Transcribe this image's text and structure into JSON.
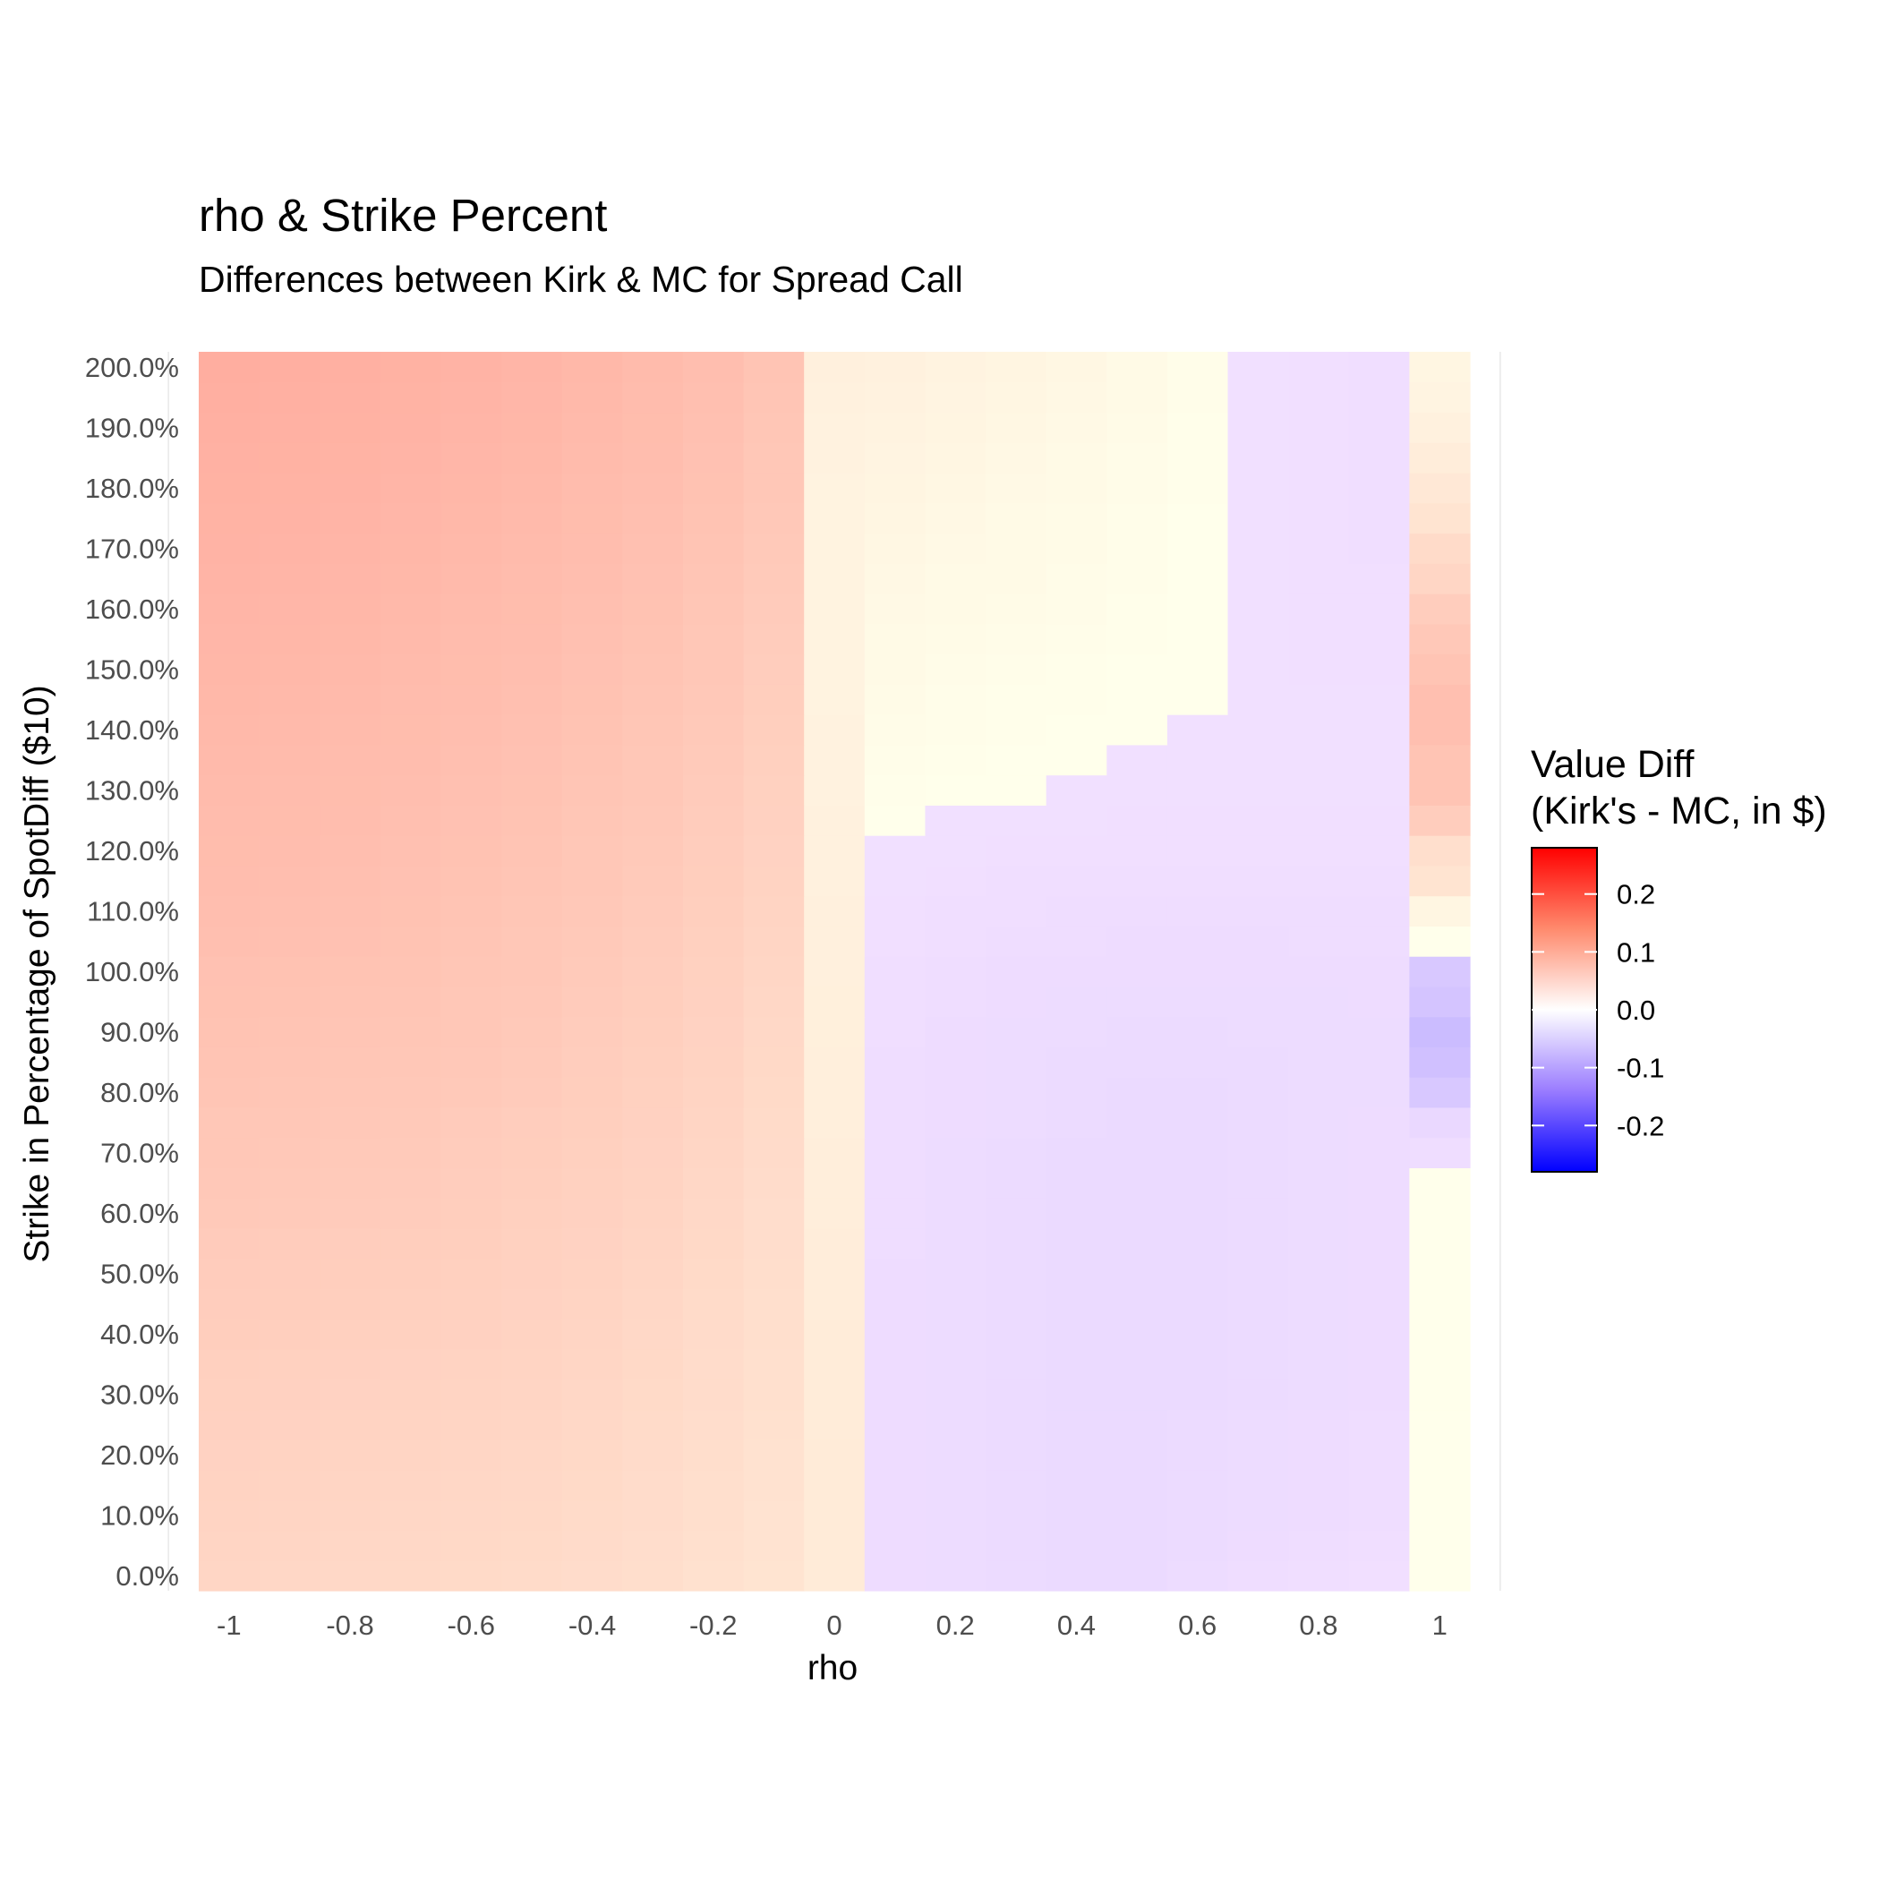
{
  "chart_data": {
    "type": "heatmap",
    "title": "rho & Strike Percent",
    "subtitle": "Differences between Kirk & MC for Spread Call",
    "xlabel": "rho",
    "ylabel": "Strike in Percentage of SpotDiff ($10)",
    "x": [
      -1,
      -0.9,
      -0.8,
      -0.7,
      -0.6,
      -0.5,
      -0.4,
      -0.3,
      -0.2,
      -0.1,
      0,
      0.1,
      0.2,
      0.3,
      0.4,
      0.5,
      0.6,
      0.7,
      0.8,
      0.9,
      1
    ],
    "y": [
      0,
      5,
      10,
      15,
      20,
      25,
      30,
      35,
      40,
      45,
      50,
      55,
      60,
      65,
      70,
      75,
      80,
      85,
      90,
      95,
      100,
      105,
      110,
      115,
      120,
      125,
      130,
      135,
      140,
      145,
      150,
      155,
      160,
      165,
      170,
      175,
      180,
      185,
      190,
      195,
      200
    ],
    "x_ticks": [
      "-1",
      "-0.8",
      "-0.6",
      "-0.4",
      "-0.2",
      "0",
      "0.2",
      "0.4",
      "0.6",
      "0.8",
      "1"
    ],
    "y_ticks": [
      "0.0%",
      "10.0%",
      "20.0%",
      "30.0%",
      "40.0%",
      "50.0%",
      "60.0%",
      "70.0%",
      "80.0%",
      "90.0%",
      "100.0%",
      "110.0%",
      "120.0%",
      "130.0%",
      "140.0%",
      "150.0%",
      "160.0%",
      "170.0%",
      "180.0%",
      "190.0%",
      "200.0%"
    ],
    "xlim": [
      -1.05,
      1.05
    ],
    "ylim": [
      -2.5,
      202.5
    ],
    "rows_note": "values[i][j] = value diff at strike y[i], rho x[j]",
    "values": [
      [
        0.045,
        0.044,
        0.043,
        0.042,
        0.041,
        0.04,
        0.038,
        0.036,
        0.033,
        0.03,
        0.022,
        -0.005,
        -0.006,
        -0.007,
        -0.008,
        -0.008,
        -0.006,
        -0.004,
        -0.003,
        -0.002,
        0.0
      ],
      [
        0.046,
        0.045,
        0.044,
        0.043,
        0.042,
        0.041,
        0.039,
        0.037,
        0.034,
        0.031,
        0.022,
        -0.005,
        -0.006,
        -0.007,
        -0.008,
        -0.008,
        -0.007,
        -0.005,
        -0.004,
        -0.003,
        0.0
      ],
      [
        0.047,
        0.046,
        0.045,
        0.044,
        0.043,
        0.042,
        0.04,
        0.038,
        0.035,
        0.031,
        0.022,
        -0.005,
        -0.006,
        -0.007,
        -0.008,
        -0.008,
        -0.007,
        -0.006,
        -0.005,
        -0.004,
        0.0
      ],
      [
        0.048,
        0.047,
        0.046,
        0.045,
        0.044,
        0.043,
        0.041,
        0.038,
        0.035,
        0.032,
        0.022,
        -0.005,
        -0.006,
        -0.007,
        -0.008,
        -0.008,
        -0.007,
        -0.006,
        -0.005,
        -0.004,
        0.0
      ],
      [
        0.049,
        0.048,
        0.047,
        0.046,
        0.045,
        0.044,
        0.042,
        0.039,
        0.036,
        0.032,
        0.022,
        -0.005,
        -0.006,
        -0.007,
        -0.008,
        -0.008,
        -0.007,
        -0.006,
        -0.005,
        -0.004,
        0.0
      ],
      [
        0.05,
        0.049,
        0.048,
        0.047,
        0.046,
        0.045,
        0.043,
        0.04,
        0.037,
        0.033,
        0.021,
        -0.005,
        -0.006,
        -0.007,
        -0.008,
        -0.008,
        -0.007,
        -0.006,
        -0.005,
        -0.004,
        0.0
      ],
      [
        0.051,
        0.05,
        0.049,
        0.048,
        0.047,
        0.046,
        0.044,
        0.041,
        0.038,
        0.034,
        0.021,
        -0.005,
        -0.006,
        -0.007,
        -0.008,
        -0.008,
        -0.008,
        -0.007,
        -0.006,
        -0.005,
        0.0
      ],
      [
        0.052,
        0.051,
        0.05,
        0.049,
        0.048,
        0.047,
        0.045,
        0.042,
        0.038,
        0.034,
        0.021,
        -0.005,
        -0.006,
        -0.007,
        -0.008,
        -0.008,
        -0.008,
        -0.007,
        -0.006,
        -0.005,
        0.0
      ],
      [
        0.054,
        0.053,
        0.052,
        0.051,
        0.05,
        0.048,
        0.046,
        0.043,
        0.039,
        0.035,
        0.021,
        -0.005,
        -0.006,
        -0.007,
        -0.008,
        -0.008,
        -0.008,
        -0.007,
        -0.006,
        -0.005,
        0.0
      ],
      [
        0.055,
        0.054,
        0.053,
        0.052,
        0.051,
        0.049,
        0.047,
        0.044,
        0.04,
        0.035,
        0.02,
        -0.005,
        -0.006,
        -0.007,
        -0.008,
        -0.008,
        -0.008,
        -0.007,
        -0.006,
        -0.005,
        0.0
      ],
      [
        0.056,
        0.055,
        0.054,
        0.053,
        0.052,
        0.05,
        0.048,
        0.045,
        0.041,
        0.036,
        0.02,
        -0.005,
        -0.006,
        -0.007,
        -0.008,
        -0.008,
        -0.008,
        -0.007,
        -0.006,
        -0.005,
        0.0
      ],
      [
        0.057,
        0.056,
        0.055,
        0.054,
        0.053,
        0.051,
        0.049,
        0.046,
        0.042,
        0.037,
        0.02,
        -0.004,
        -0.006,
        -0.007,
        -0.008,
        -0.008,
        -0.008,
        -0.007,
        -0.006,
        -0.005,
        0.0
      ],
      [
        0.059,
        0.058,
        0.057,
        0.056,
        0.054,
        0.052,
        0.05,
        0.047,
        0.043,
        0.037,
        0.019,
        -0.004,
        -0.006,
        -0.007,
        -0.008,
        -0.008,
        -0.008,
        -0.007,
        -0.006,
        -0.005,
        0.0
      ],
      [
        0.06,
        0.059,
        0.058,
        0.057,
        0.055,
        0.053,
        0.051,
        0.048,
        0.044,
        0.038,
        0.019,
        -0.004,
        -0.006,
        -0.007,
        -0.008,
        -0.008,
        -0.008,
        -0.007,
        -0.006,
        -0.005,
        0.0
      ],
      [
        0.061,
        0.06,
        0.059,
        0.058,
        0.056,
        0.054,
        0.052,
        0.049,
        0.045,
        0.039,
        0.019,
        -0.004,
        -0.006,
        -0.007,
        -0.008,
        -0.008,
        -0.008,
        -0.007,
        -0.006,
        -0.005,
        -0.004
      ],
      [
        0.062,
        0.061,
        0.06,
        0.059,
        0.057,
        0.055,
        0.053,
        0.05,
        0.046,
        0.04,
        0.018,
        -0.004,
        -0.005,
        -0.006,
        -0.007,
        -0.008,
        -0.008,
        -0.007,
        -0.006,
        -0.005,
        -0.01
      ],
      [
        0.064,
        0.063,
        0.062,
        0.06,
        0.059,
        0.057,
        0.054,
        0.051,
        0.047,
        0.041,
        0.018,
        -0.004,
        -0.005,
        -0.006,
        -0.007,
        -0.008,
        -0.008,
        -0.007,
        -0.006,
        -0.006,
        -0.03
      ],
      [
        0.065,
        0.064,
        0.063,
        0.062,
        0.06,
        0.058,
        0.055,
        0.052,
        0.048,
        0.042,
        0.018,
        -0.004,
        -0.005,
        -0.006,
        -0.007,
        -0.007,
        -0.007,
        -0.007,
        -0.006,
        -0.006,
        -0.04
      ],
      [
        0.066,
        0.065,
        0.064,
        0.063,
        0.061,
        0.059,
        0.056,
        0.053,
        0.049,
        0.043,
        0.017,
        -0.003,
        -0.005,
        -0.006,
        -0.006,
        -0.007,
        -0.007,
        -0.006,
        -0.006,
        -0.006,
        -0.045
      ],
      [
        0.067,
        0.066,
        0.065,
        0.064,
        0.062,
        0.06,
        0.057,
        0.054,
        0.05,
        0.044,
        0.017,
        -0.003,
        -0.004,
        -0.005,
        -0.006,
        -0.006,
        -0.006,
        -0.006,
        -0.006,
        -0.005,
        -0.035
      ],
      [
        0.068,
        0.067,
        0.066,
        0.065,
        0.063,
        0.061,
        0.058,
        0.055,
        0.051,
        0.045,
        0.016,
        -0.003,
        -0.004,
        -0.005,
        -0.005,
        -0.005,
        -0.005,
        -0.005,
        -0.005,
        -0.005,
        -0.03
      ],
      [
        0.07,
        0.069,
        0.068,
        0.066,
        0.064,
        0.062,
        0.059,
        0.056,
        0.052,
        0.046,
        0.016,
        -0.002,
        -0.003,
        -0.004,
        -0.004,
        -0.005,
        -0.005,
        -0.005,
        -0.004,
        -0.004,
        0.0
      ],
      [
        0.071,
        0.07,
        0.069,
        0.067,
        0.065,
        0.063,
        0.06,
        0.057,
        0.053,
        0.047,
        0.016,
        -0.002,
        -0.003,
        -0.003,
        -0.004,
        -0.004,
        -0.004,
        -0.004,
        -0.004,
        -0.004,
        0.01
      ],
      [
        0.072,
        0.071,
        0.07,
        0.068,
        0.066,
        0.064,
        0.061,
        0.058,
        0.054,
        0.048,
        0.015,
        -0.001,
        -0.002,
        -0.003,
        -0.003,
        -0.003,
        -0.003,
        -0.003,
        -0.003,
        -0.003,
        0.03
      ],
      [
        0.073,
        0.072,
        0.071,
        0.069,
        0.067,
        0.065,
        0.062,
        0.059,
        0.055,
        0.049,
        0.015,
        -0.001,
        -0.001,
        -0.002,
        -0.002,
        -0.002,
        -0.002,
        -0.002,
        -0.002,
        -0.002,
        0.035
      ],
      [
        0.074,
        0.073,
        0.072,
        0.07,
        0.068,
        0.066,
        0.063,
        0.06,
        0.056,
        0.05,
        0.015,
        0.0,
        -0.001,
        -0.001,
        -0.001,
        -0.002,
        -0.002,
        -0.002,
        -0.002,
        -0.002,
        0.055
      ],
      [
        0.075,
        0.074,
        0.073,
        0.071,
        0.069,
        0.067,
        0.064,
        0.061,
        0.057,
        0.051,
        0.014,
        0.001,
        0.0,
        0.0,
        -0.001,
        -0.001,
        -0.001,
        -0.001,
        -0.001,
        -0.001,
        0.065
      ],
      [
        0.076,
        0.075,
        0.074,
        0.072,
        0.07,
        0.068,
        0.065,
        0.062,
        0.058,
        0.052,
        0.014,
        0.002,
        0.001,
        0.0,
        0.0,
        -0.001,
        -0.001,
        -0.001,
        -0.001,
        -0.001,
        0.065
      ],
      [
        0.077,
        0.076,
        0.075,
        0.073,
        0.071,
        0.069,
        0.066,
        0.063,
        0.059,
        0.053,
        0.014,
        0.003,
        0.002,
        0.001,
        0.0,
        0.0,
        -0.001,
        -0.001,
        -0.001,
        -0.001,
        0.07
      ],
      [
        0.078,
        0.077,
        0.076,
        0.074,
        0.072,
        0.07,
        0.067,
        0.064,
        0.06,
        0.054,
        0.013,
        0.004,
        0.002,
        0.001,
        0.001,
        0.0,
        0.0,
        -0.001,
        -0.001,
        -0.001,
        0.07
      ],
      [
        0.079,
        0.078,
        0.077,
        0.075,
        0.073,
        0.071,
        0.068,
        0.065,
        0.061,
        0.055,
        0.013,
        0.005,
        0.003,
        0.002,
        0.001,
        0.0,
        0.0,
        -0.001,
        -0.002,
        -0.002,
        0.065
      ],
      [
        0.08,
        0.079,
        0.078,
        0.076,
        0.074,
        0.072,
        0.069,
        0.066,
        0.062,
        0.056,
        0.013,
        0.006,
        0.004,
        0.003,
        0.002,
        0.001,
        0.0,
        -0.001,
        -0.002,
        -0.002,
        0.06
      ],
      [
        0.081,
        0.08,
        0.079,
        0.077,
        0.075,
        0.073,
        0.07,
        0.067,
        0.063,
        0.057,
        0.013,
        0.007,
        0.005,
        0.004,
        0.003,
        0.001,
        0.0,
        -0.001,
        -0.002,
        -0.002,
        0.055
      ],
      [
        0.082,
        0.081,
        0.08,
        0.078,
        0.076,
        0.074,
        0.071,
        0.068,
        0.064,
        0.058,
        0.013,
        0.008,
        0.006,
        0.005,
        0.003,
        0.002,
        0.0,
        -0.001,
        -0.002,
        -0.002,
        0.045
      ],
      [
        0.083,
        0.082,
        0.081,
        0.079,
        0.077,
        0.075,
        0.072,
        0.069,
        0.065,
        0.059,
        0.013,
        0.009,
        0.007,
        0.005,
        0.004,
        0.002,
        0.0,
        -0.001,
        -0.002,
        -0.003,
        0.04
      ],
      [
        0.084,
        0.083,
        0.082,
        0.08,
        0.078,
        0.076,
        0.073,
        0.07,
        0.066,
        0.06,
        0.013,
        0.01,
        0.008,
        0.006,
        0.004,
        0.002,
        0.0,
        -0.001,
        -0.002,
        -0.003,
        0.03
      ],
      [
        0.085,
        0.084,
        0.083,
        0.081,
        0.079,
        0.077,
        0.074,
        0.071,
        0.067,
        0.061,
        0.013,
        0.011,
        0.009,
        0.007,
        0.005,
        0.003,
        0.001,
        -0.001,
        -0.002,
        -0.003,
        0.025
      ],
      [
        0.086,
        0.085,
        0.084,
        0.082,
        0.08,
        0.078,
        0.075,
        0.072,
        0.068,
        0.062,
        0.014,
        0.012,
        0.01,
        0.008,
        0.006,
        0.003,
        0.001,
        -0.001,
        -0.002,
        -0.003,
        0.02
      ],
      [
        0.087,
        0.086,
        0.085,
        0.083,
        0.081,
        0.079,
        0.076,
        0.073,
        0.069,
        0.063,
        0.014,
        0.013,
        0.011,
        0.009,
        0.007,
        0.004,
        0.001,
        -0.001,
        -0.002,
        -0.003,
        0.015
      ],
      [
        0.088,
        0.087,
        0.086,
        0.084,
        0.082,
        0.08,
        0.077,
        0.074,
        0.07,
        0.064,
        0.015,
        0.014,
        0.012,
        0.01,
        0.008,
        0.005,
        0.002,
        -0.001,
        -0.002,
        -0.003,
        0.012
      ],
      [
        0.089,
        0.088,
        0.087,
        0.085,
        0.083,
        0.081,
        0.078,
        0.075,
        0.071,
        0.065,
        0.016,
        0.015,
        0.013,
        0.011,
        0.009,
        0.006,
        0.002,
        -0.001,
        -0.002,
        -0.003,
        0.01
      ]
    ],
    "color_scale": {
      "low": "#0000ff",
      "mid": "#ffffff",
      "high": "#ff0000",
      "limits": [
        -0.28,
        0.28
      ]
    },
    "grid": true,
    "legend": {
      "title_line1": "Value Diff",
      "title_line2": "(Kirk's - MC, in $)",
      "ticks": [
        "0.2",
        "0.1",
        "0.0",
        "-0.1",
        "-0.2"
      ],
      "tick_values": [
        0.2,
        0.1,
        0.0,
        -0.1,
        -0.2
      ],
      "placement": "right"
    }
  }
}
